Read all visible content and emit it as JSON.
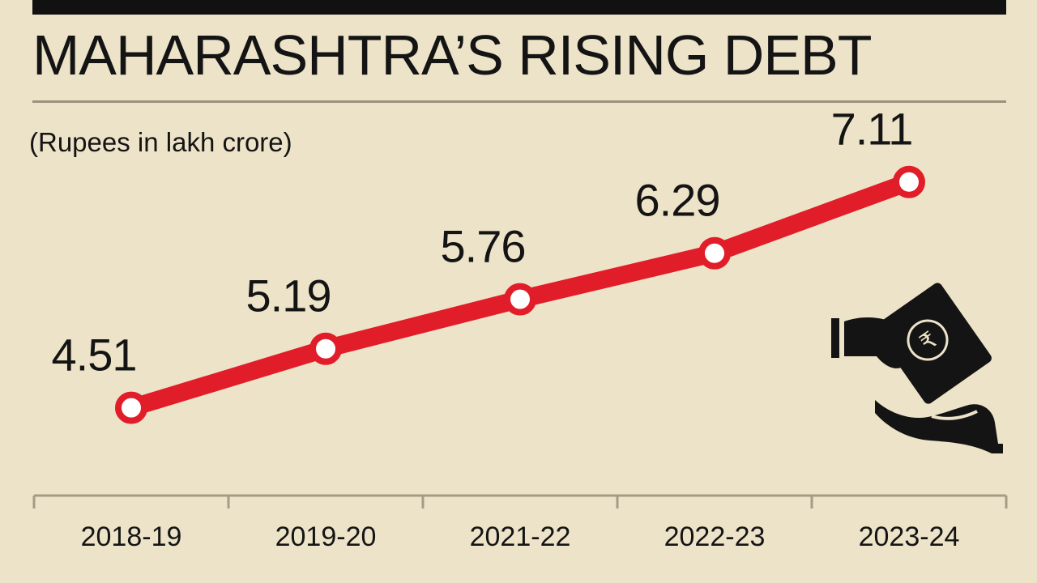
{
  "header": {
    "title": "MAHARASHTRA’S RISING DEBT",
    "unit": "(Rupees in lakh crore)"
  },
  "colors": {
    "line": "#e11d2a",
    "background": "#ede3c8",
    "text": "#141414",
    "marker_fill": "#ffffff"
  },
  "icon": "hand-giving-rupee-note-icon",
  "chart_data": {
    "type": "line",
    "title": "MAHARASHTRA’S RISING DEBT",
    "ylabel": "(Rupees in lakh crore)",
    "xlabel": "",
    "categories": [
      "2018-19",
      "2019-20",
      "2021-22",
      "2022-23",
      "2023-24"
    ],
    "series": [
      {
        "values": [
          4.51,
          5.19,
          5.76,
          6.29,
          7.11
        ]
      }
    ],
    "value_labels": [
      "4.51",
      "5.19",
      "5.76",
      "6.29",
      "7.11"
    ],
    "ylim": [
      3.5,
      7.9
    ],
    "grid": false,
    "legend": "none"
  }
}
